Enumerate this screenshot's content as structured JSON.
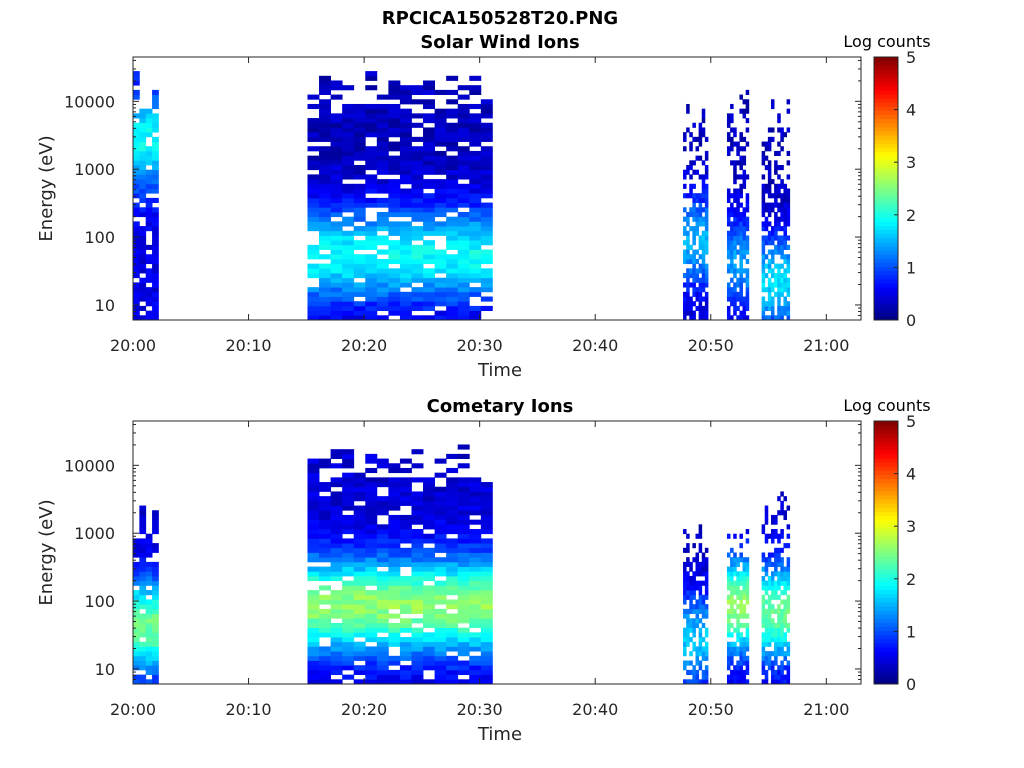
{
  "figure_title": "RPCICA150528T20.PNG",
  "chart_data": [
    {
      "type": "heatmap",
      "title": "Solar Wind Ions",
      "xlabel": "Time",
      "ylabel": "Energy (eV)",
      "x_ticks": [
        "20:00",
        "20:10",
        "20:20",
        "20:30",
        "20:40",
        "20:50",
        "21:00"
      ],
      "x_tick_minutes": [
        0,
        10,
        20,
        30,
        40,
        50,
        60
      ],
      "x_range_minutes": [
        0,
        63
      ],
      "y_scale": "log",
      "y_ticks": [
        "10",
        "100",
        "1000",
        "10000"
      ],
      "y_tick_values": [
        10,
        100,
        1000,
        10000
      ],
      "y_range": [
        6,
        45000
      ],
      "colorbar_label": "Log counts",
      "colorbar_ticks": [
        "0",
        "1",
        "2",
        "3",
        "4",
        "5"
      ],
      "colorbar_range": [
        0,
        5
      ],
      "colormap": "jet",
      "clusters": [
        {
          "t0": 0.0,
          "t1": 2.2,
          "level": 0.5,
          "peak": 1.9,
          "peak_logE": 3.4,
          "top_logE": 4.4
        },
        {
          "t0": 15.1,
          "t1": 31.0,
          "level": 0.3,
          "peak": 1.9,
          "peak_logE": 1.7,
          "top_logE": 4.6
        },
        {
          "t0": 47.6,
          "t1": 49.6,
          "level": 0.3,
          "peak": 1.5,
          "peak_logE": 1.9,
          "top_logE": 4.0
        },
        {
          "t0": 51.4,
          "t1": 53.2,
          "level": 0.3,
          "peak": 1.4,
          "peak_logE": 1.6,
          "top_logE": 4.2
        },
        {
          "t0": 54.4,
          "t1": 56.6,
          "level": 0.3,
          "peak": 1.7,
          "peak_logE": 1.3,
          "top_logE": 4.1
        }
      ]
    },
    {
      "type": "heatmap",
      "title": "Cometary Ions",
      "xlabel": "Time",
      "ylabel": "Energy (eV)",
      "x_ticks": [
        "20:00",
        "20:10",
        "20:20",
        "20:30",
        "20:40",
        "20:50",
        "21:00"
      ],
      "x_tick_minutes": [
        0,
        10,
        20,
        30,
        40,
        50,
        60
      ],
      "x_range_minutes": [
        0,
        63
      ],
      "y_scale": "log",
      "y_ticks": [
        "10",
        "100",
        "1000",
        "10000"
      ],
      "y_tick_values": [
        10,
        100,
        1000,
        10000
      ],
      "y_range": [
        6,
        45000
      ],
      "colorbar_label": "Log counts",
      "colorbar_ticks": [
        "0",
        "1",
        "2",
        "3",
        "4",
        "5"
      ],
      "colorbar_range": [
        0,
        5
      ],
      "colormap": "jet",
      "clusters": [
        {
          "t0": 0.0,
          "t1": 2.2,
          "level": 0.4,
          "peak": 2.4,
          "peak_logE": 1.6,
          "top_logE": 3.4
        },
        {
          "t0": 15.1,
          "t1": 31.0,
          "level": 0.4,
          "peak": 2.6,
          "peak_logE": 1.9,
          "top_logE": 4.3
        },
        {
          "t0": 47.6,
          "t1": 49.6,
          "level": 0.3,
          "peak": 1.6,
          "peak_logE": 1.4,
          "top_logE": 3.2
        },
        {
          "t0": 51.4,
          "t1": 53.2,
          "level": 0.4,
          "peak": 2.6,
          "peak_logE": 1.9,
          "top_logE": 3.1
        },
        {
          "t0": 54.4,
          "t1": 56.6,
          "level": 0.4,
          "peak": 2.4,
          "peak_logE": 1.8,
          "top_logE": 3.6
        }
      ]
    }
  ]
}
